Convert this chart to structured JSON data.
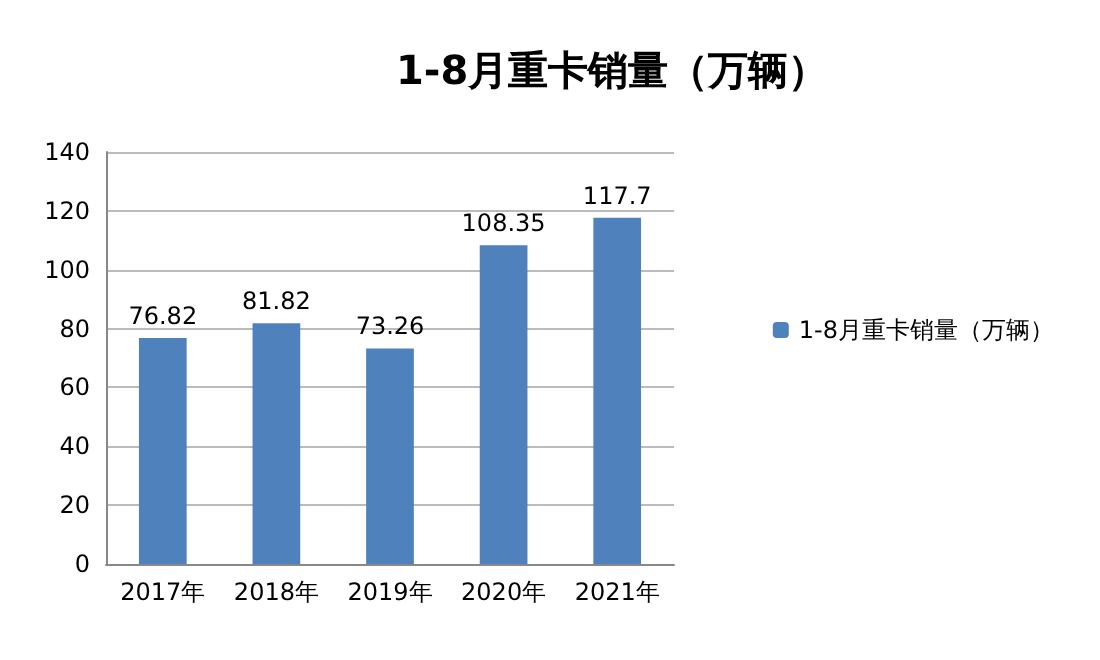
{
  "chart_data": {
    "type": "bar",
    "title": "1-8月重卡销量（万辆）",
    "categories": [
      "2017年",
      "2018年",
      "2019年",
      "2020年",
      "2021年"
    ],
    "series": [
      {
        "name": "1-8月重卡销量（万辆）",
        "color": "#4f81bd",
        "values": [
          76.82,
          81.82,
          73.26,
          108.35,
          117.7
        ]
      }
    ],
    "ylim": [
      0,
      140
    ],
    "yticks": [
      0,
      20,
      40,
      60,
      80,
      100,
      120,
      140
    ],
    "grid": "y",
    "legend": "right",
    "data_labels": true
  }
}
